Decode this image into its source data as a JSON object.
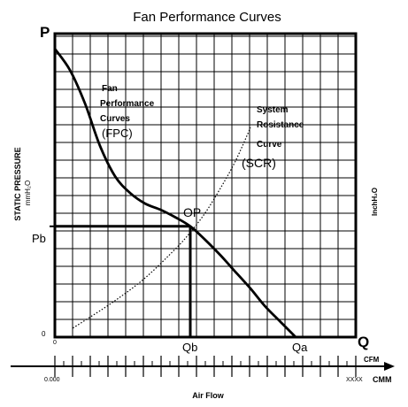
{
  "chart_data": {
    "type": "line",
    "title": "Fan Performance Curves",
    "ylabel_left": "STATIC PRESSURE",
    "ylabel_left_unit": "mmH₂O",
    "ylabel_right": "InchH₂O",
    "xlabel": "Air Flow",
    "x_unit_top": "CFM",
    "x_unit_bottom": "CMM",
    "x_start_top": "0",
    "x_start_bottom": "0.000",
    "x_end_bottom": "XXXX",
    "y_origin_label": "0",
    "y_axis_letter": "P",
    "x_axis_letter": "Q",
    "xlim": [
      0,
      10
    ],
    "ylim": [
      0,
      10
    ],
    "grid": true,
    "series": [
      {
        "name": "Fan Performance Curves (FPC)",
        "style": "solid",
        "x": [
          0,
          0.5,
          1.0,
          1.5,
          2.0,
          2.5,
          3.0,
          3.5,
          4.0,
          4.5,
          5.0,
          5.5,
          6.0,
          6.5,
          7.0,
          7.5,
          8.0
        ],
        "y": [
          9.5,
          8.8,
          7.7,
          6.3,
          5.3,
          4.75,
          4.4,
          4.2,
          3.95,
          3.65,
          3.2,
          2.7,
          2.15,
          1.6,
          1.0,
          0.5,
          0.0
        ]
      },
      {
        "name": "System Rosistance Curve (SCR)",
        "style": "dotted",
        "x": [
          0.6,
          1.0,
          2.0,
          3.0,
          4.0,
          4.5,
          5.0,
          5.5,
          6.0,
          6.5
        ],
        "y": [
          0.3,
          0.55,
          1.2,
          1.95,
          2.9,
          3.45,
          4.1,
          4.9,
          5.8,
          6.9
        ]
      }
    ],
    "operating_point": {
      "label": "OP",
      "x": 4.5,
      "y": 3.65
    },
    "markers": {
      "pressure": "Pb",
      "flow_b": "Qb",
      "flow_a": "Qa"
    },
    "annotations": {
      "fpc_line1": "Fan",
      "fpc_line2": "Performance",
      "fpc_line3": "Curves",
      "fpc_abbr": "(FPC)",
      "scr_line1": "System",
      "scr_line2": "Rosistance",
      "scr_line3": "Curve",
      "scr_abbr": "(SCR)"
    }
  }
}
